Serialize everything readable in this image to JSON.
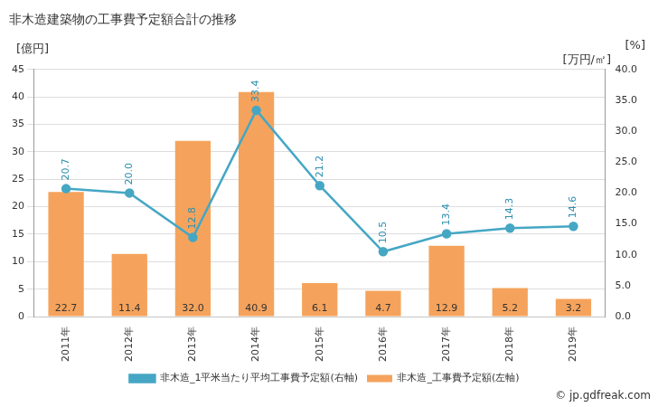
{
  "chart_data": {
    "type": "bar",
    "title": "非木造建築物の工事費予定額合計の推移",
    "categories": [
      "2011年",
      "2012年",
      "2013年",
      "2014年",
      "2015年",
      "2016年",
      "2017年",
      "2018年",
      "2019年"
    ],
    "ylabel": "[億円]",
    "y2label": "[万円/㎡]",
    "annotations": [
      "[%]",
      "© jp.gdfreak.com"
    ],
    "ylim": [
      0,
      45
    ],
    "yticks": [
      0,
      5,
      10,
      15,
      20,
      25,
      30,
      35,
      40,
      45
    ],
    "y2lim": [
      0,
      40
    ],
    "y2ticks": [
      {
        "value": 0,
        "label": "0.0"
      },
      {
        "value": 5,
        "label": "5.0"
      },
      {
        "value": 10,
        "label": "10.0"
      },
      {
        "value": 15,
        "label": "15.0"
      },
      {
        "value": 20,
        "label": "20.0"
      },
      {
        "value": 25,
        "label": "25.0"
      },
      {
        "value": 30,
        "label": "30.0"
      },
      {
        "value": 35,
        "label": "35.0"
      },
      {
        "value": 40,
        "label": "40.0"
      }
    ],
    "grid": true,
    "legend": "bottom",
    "data_labels": true,
    "series": [
      {
        "name": "非木造_工事費予定額(左軸)",
        "type": "bar",
        "color": "#f5a35c",
        "values": [
          22.7,
          11.4,
          32.0,
          40.9,
          6.1,
          4.7,
          12.9,
          5.2,
          3.2
        ],
        "value_labels": [
          "22.7",
          "11.4",
          "32.0",
          "40.9",
          "6.1",
          "4.7",
          "12.9",
          "5.2",
          "3.2"
        ]
      },
      {
        "name": "非木造_1平米当たり平均工事費予定額(右軸)",
        "type": "line",
        "axis": "y2",
        "color": "#45a7c4",
        "marker": "circle",
        "line_style": "solid",
        "values": [
          20.7,
          20.0,
          12.8,
          33.4,
          21.2,
          10.5,
          13.4,
          14.3,
          14.6
        ],
        "value_labels": [
          "20.7",
          "20.0",
          "12.8",
          "33.4",
          "21.2",
          "10.5",
          "13.4",
          "14.3",
          "14.6"
        ]
      }
    ]
  }
}
